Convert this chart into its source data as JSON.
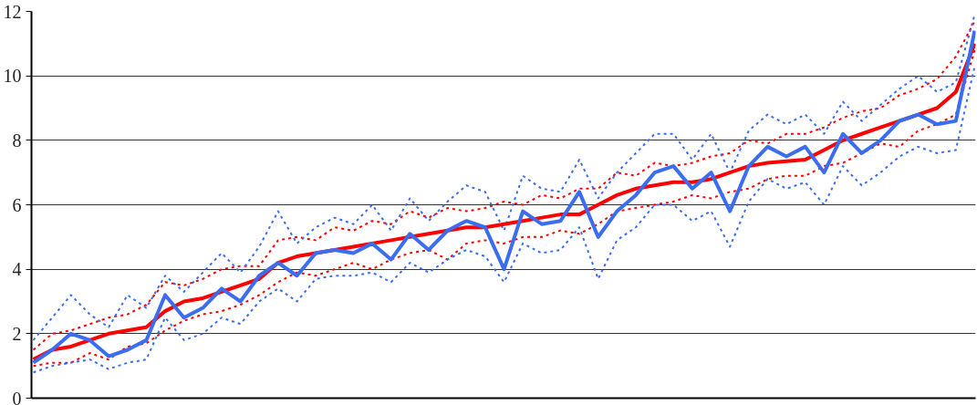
{
  "chart_data": {
    "type": "line",
    "categories": [
      null,
      null,
      null,
      null,
      null,
      null,
      null,
      null,
      null,
      null,
      null,
      null,
      null,
      null,
      null,
      null,
      null,
      null,
      null,
      null,
      null,
      null,
      null,
      null,
      null,
      null,
      null,
      null,
      null,
      null,
      null,
      null,
      null,
      null,
      null,
      null,
      null,
      null,
      null,
      null,
      null,
      null,
      null,
      null,
      null,
      null,
      null,
      null,
      null,
      null,
      null
    ],
    "series": [
      {
        "color": "#ff0000",
        "line_style": "dotted",
        "values": [
          1.5,
          2.0,
          2.1,
          2.3,
          2.5,
          2.6,
          2.9,
          3.6,
          3.5,
          3.7,
          4.0,
          4.1,
          4.1,
          4.9,
          5.0,
          4.9,
          5.3,
          5.2,
          5.5,
          5.4,
          5.8,
          5.6,
          5.9,
          5.8,
          5.9,
          6.1,
          6.0,
          6.3,
          6.2,
          6.5,
          6.5,
          7.0,
          6.9,
          7.3,
          7.2,
          7.3,
          7.5,
          7.6,
          8.0,
          7.9,
          8.2,
          8.2,
          8.4,
          8.7,
          8.9,
          9.0,
          9.4,
          9.6,
          9.9,
          10.6,
          11.7
        ]
      },
      {
        "color": "#ff0000",
        "line_style": "dotted",
        "values": [
          1.0,
          1.1,
          1.1,
          1.4,
          1.2,
          1.6,
          1.7,
          2.1,
          2.4,
          2.6,
          2.7,
          2.9,
          3.2,
          3.6,
          3.9,
          3.8,
          4.0,
          4.2,
          4.0,
          4.3,
          4.5,
          4.6,
          4.3,
          4.8,
          4.9,
          4.8,
          5.0,
          5.0,
          5.2,
          5.1,
          5.4,
          5.8,
          5.9,
          6.0,
          6.1,
          6.3,
          6.2,
          6.4,
          6.5,
          6.8,
          6.9,
          6.9,
          7.2,
          7.3,
          7.6,
          7.9,
          7.8,
          8.3,
          8.5,
          8.8,
          10.8
        ]
      },
      {
        "color": "#3a6df0",
        "line_style": "dotted",
        "values": [
          1.8,
          2.5,
          3.2,
          2.6,
          2.2,
          3.2,
          2.8,
          3.8,
          3.3,
          3.9,
          4.5,
          3.9,
          4.7,
          5.8,
          4.8,
          5.3,
          5.6,
          5.4,
          6.0,
          5.2,
          6.2,
          5.5,
          6.1,
          6.6,
          6.4,
          5.2,
          6.9,
          6.5,
          6.4,
          7.4,
          6.2,
          7.0,
          7.6,
          8.2,
          8.2,
          7.4,
          8.2,
          7.0,
          8.3,
          8.8,
          8.5,
          8.8,
          8.2,
          9.2,
          8.6,
          9.1,
          9.6,
          10.0,
          9.5,
          9.8,
          11.9
        ]
      },
      {
        "color": "#3a6df0",
        "line_style": "dotted",
        "values": [
          0.8,
          1.0,
          1.1,
          1.2,
          0.9,
          1.1,
          1.2,
          2.5,
          1.8,
          2.0,
          2.5,
          2.3,
          3.0,
          3.4,
          3.0,
          3.7,
          3.8,
          3.8,
          3.9,
          3.6,
          4.2,
          3.9,
          4.3,
          4.6,
          4.4,
          3.6,
          4.8,
          4.5,
          4.6,
          5.3,
          3.7,
          4.9,
          5.3,
          6.0,
          6.0,
          5.5,
          5.8,
          4.7,
          6.1,
          6.8,
          6.5,
          6.7,
          6.0,
          7.2,
          6.6,
          7.0,
          7.5,
          7.8,
          7.6,
          7.7,
          10.3
        ]
      },
      {
        "color": "#ff0000",
        "line_style": "solid",
        "values": [
          1.2,
          1.5,
          1.6,
          1.8,
          2.0,
          2.1,
          2.2,
          2.7,
          3.0,
          3.1,
          3.3,
          3.5,
          3.7,
          4.2,
          4.4,
          4.5,
          4.6,
          4.7,
          4.8,
          4.9,
          5.0,
          5.1,
          5.2,
          5.3,
          5.3,
          5.4,
          5.5,
          5.6,
          5.7,
          5.7,
          6.0,
          6.3,
          6.5,
          6.6,
          6.7,
          6.7,
          6.8,
          7.0,
          7.2,
          7.3,
          7.35,
          7.4,
          7.7,
          8.0,
          8.2,
          8.4,
          8.6,
          8.8,
          9.0,
          9.5,
          11.0
        ]
      },
      {
        "color": "#3a6df0",
        "line_style": "solid",
        "values": [
          1.1,
          1.5,
          2.0,
          1.8,
          1.3,
          1.5,
          1.8,
          3.2,
          2.5,
          2.8,
          3.4,
          3.0,
          3.8,
          4.2,
          3.8,
          4.5,
          4.6,
          4.5,
          4.8,
          4.3,
          5.1,
          4.6,
          5.2,
          5.5,
          5.3,
          4.0,
          5.8,
          5.4,
          5.5,
          6.4,
          5.0,
          5.8,
          6.3,
          7.0,
          7.2,
          6.5,
          7.0,
          5.8,
          7.2,
          7.8,
          7.5,
          7.8,
          7.0,
          8.2,
          7.6,
          8.0,
          8.6,
          8.8,
          8.5,
          8.6,
          11.4
        ]
      }
    ],
    "ylim": [
      0,
      12
    ],
    "yticks": [
      0,
      2,
      4,
      6,
      8,
      10,
      12
    ],
    "grid": "y",
    "tick_labels": "y",
    "marker": "none"
  }
}
